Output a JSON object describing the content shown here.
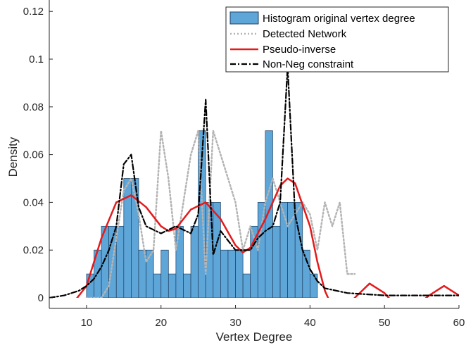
{
  "chart_data": {
    "type": "bar",
    "xlabel": "Vertex Degree",
    "ylabel": "Density",
    "xlim": [
      5,
      60
    ],
    "ylim": [
      -0.004,
      0.125
    ],
    "xticks": [
      10,
      20,
      30,
      40,
      50,
      60
    ],
    "xtick_labels": [
      "10",
      "20",
      "30",
      "40",
      "50",
      "60"
    ],
    "yticks": [
      0,
      0.02,
      0.04,
      0.06,
      0.08,
      0.1,
      0.12
    ],
    "ytick_labels": [
      "0",
      "0.02",
      "0.04",
      "0.06",
      "0.08",
      "0.1",
      "0.12"
    ],
    "grid": false,
    "legend_position": "top-right",
    "colors": {
      "histogram_fill": "#5ea5d8",
      "histogram_edge": "#1f3f5f",
      "detected_network": "#b4b4b4",
      "pseudo_inverse": "#e41a1c",
      "non_neg": "#000000"
    },
    "histogram": {
      "name": "Histogram original vertex degree",
      "bin_width": 1,
      "bin_starts": [
        10,
        11,
        12,
        13,
        14,
        15,
        16,
        17,
        18,
        19,
        20,
        21,
        22,
        23,
        24,
        25,
        26,
        27,
        28,
        29,
        30,
        31,
        32,
        33,
        34,
        35,
        36,
        37,
        38,
        39,
        40
      ],
      "values": [
        0.01,
        0.02,
        0.03,
        0.03,
        0.03,
        0.05,
        0.05,
        0.02,
        0.02,
        0.01,
        0.02,
        0.01,
        0.03,
        0.01,
        0.03,
        0.07,
        0.04,
        0.04,
        0.02,
        0.02,
        0.02,
        0.01,
        0.03,
        0.04,
        0.07,
        0.03,
        0.04,
        0.04,
        0.04,
        0.02,
        0.01
      ]
    },
    "series": [
      {
        "name": "Detected Network",
        "style": "dotted",
        "x": [
          10,
          12,
          13,
          14,
          15,
          16,
          17,
          18,
          19,
          20,
          21,
          22,
          23,
          24,
          25,
          26,
          27,
          28,
          29,
          30,
          31,
          32,
          33,
          34,
          35,
          36,
          37,
          38,
          39,
          40,
          41,
          42,
          43,
          44,
          45,
          46
        ],
        "y": [
          0,
          0,
          0.005,
          0.025,
          0.045,
          0.05,
          0.035,
          0.015,
          0.02,
          0.07,
          0.05,
          0.02,
          0.04,
          0.06,
          0.07,
          0.01,
          0.07,
          0.06,
          0.05,
          0.04,
          0.02,
          0.03,
          0.02,
          0.04,
          0.05,
          0.04,
          0.03,
          0.035,
          0.04,
          0.035,
          0.02,
          0.04,
          0.03,
          0.04,
          0.01,
          0.01
        ]
      },
      {
        "name": "Pseudo-inverse",
        "style": "solid",
        "x": [
          5,
          7,
          8,
          10,
          12,
          14,
          16,
          18,
          20,
          21,
          22,
          24,
          26,
          28,
          30,
          31,
          32,
          34,
          36,
          37,
          38,
          40,
          41,
          42,
          43,
          44,
          46,
          48,
          50,
          52,
          53,
          54,
          56,
          58,
          60
        ],
        "y": [
          -0.003,
          -0.004,
          -0.003,
          0.005,
          0.025,
          0.04,
          0.043,
          0.038,
          0.03,
          0.028,
          0.029,
          0.037,
          0.04,
          0.033,
          0.022,
          0.019,
          0.021,
          0.033,
          0.047,
          0.05,
          0.048,
          0.03,
          0.015,
          0.003,
          -0.004,
          -0.007,
          0.0,
          0.006,
          0.002,
          -0.005,
          -0.006,
          -0.004,
          0.001,
          0.005,
          0.001
        ]
      },
      {
        "name": "Non-Neg constraint",
        "style": "dashdot",
        "x": [
          5,
          7,
          9,
          10,
          11,
          12,
          13,
          14,
          15,
          16,
          17,
          18,
          20,
          22,
          24,
          25,
          26,
          27,
          28,
          30,
          32,
          33,
          34,
          35,
          36,
          37,
          38,
          39,
          40,
          41,
          42,
          45,
          50,
          55,
          60
        ],
        "y": [
          0.0,
          0.001,
          0.003,
          0.005,
          0.008,
          0.013,
          0.02,
          0.03,
          0.056,
          0.06,
          0.038,
          0.03,
          0.027,
          0.03,
          0.027,
          0.035,
          0.083,
          0.018,
          0.028,
          0.02,
          0.02,
          0.025,
          0.028,
          0.03,
          0.04,
          0.097,
          0.035,
          0.02,
          0.012,
          0.007,
          0.004,
          0.002,
          0.001,
          0.001,
          0.001
        ]
      }
    ],
    "legend": [
      {
        "label": "Histogram original vertex degree",
        "key": "histogram"
      },
      {
        "label": "Detected Network",
        "key": "detected_network"
      },
      {
        "label": "Pseudo-inverse",
        "key": "pseudo_inverse"
      },
      {
        "label": "Non-Neg constraint",
        "key": "non_neg"
      }
    ]
  }
}
